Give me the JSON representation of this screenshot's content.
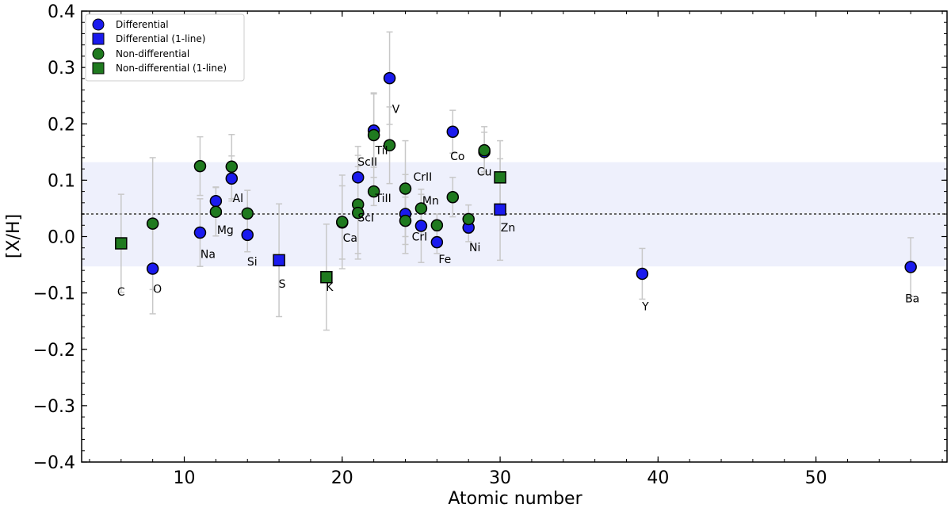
{
  "chart_data": {
    "type": "scatter",
    "xlabel": "Atomic number",
    "ylabel": "[X/H]",
    "xlim": [
      3.5,
      58.3
    ],
    "ylim": [
      -0.4,
      0.4
    ],
    "x_ticks": [
      10,
      20,
      30,
      40,
      50
    ],
    "x_tick_labels": [
      "10",
      "20",
      "30",
      "40",
      "50"
    ],
    "y_ticks": [
      -0.4,
      -0.3,
      -0.2,
      -0.1,
      0.0,
      0.1,
      0.2,
      0.3,
      0.4
    ],
    "y_tick_labels": [
      "−0.4",
      "−0.3",
      "−0.2",
      "−0.1",
      "0.0",
      "0.1",
      "0.2",
      "0.3",
      "0.4"
    ],
    "grid": false,
    "legend_position": "top-left",
    "mean_line": 0.04,
    "band": [
      -0.053,
      0.132
    ],
    "colors": {
      "differential": "#1a1aee",
      "non_differential": "#1f7a1f",
      "band": "#eef0fc",
      "errorbar": "#c8c8c8",
      "mean_line": "#666666"
    },
    "series": [
      {
        "name": "Differential",
        "marker": "circle",
        "points": [
          {
            "x": 8,
            "y": -0.057,
            "err": 0.08
          },
          {
            "x": 11,
            "y": 0.007,
            "err": 0.06
          },
          {
            "x": 12,
            "y": 0.063,
            "err": 0.025
          },
          {
            "x": 13,
            "y": 0.103,
            "err": 0.04
          },
          {
            "x": 14,
            "y": 0.003,
            "err": 0.03
          },
          {
            "x": 20,
            "y": 0.025,
            "err": 0.065
          },
          {
            "x": 21,
            "y": 0.105,
            "err": 0.055
          },
          {
            "x": 22,
            "y": 0.188,
            "err": 0.065
          },
          {
            "x": 23,
            "y": 0.281,
            "err": 0.082
          },
          {
            "x": 24,
            "y": 0.04,
            "err": 0.07
          },
          {
            "x": 25,
            "y": 0.019,
            "err": 0.065
          },
          {
            "x": 26,
            "y": -0.01,
            "err": 0.02
          },
          {
            "x": 27,
            "y": 0.186,
            "err": 0.038
          },
          {
            "x": 28,
            "y": 0.016,
            "err": 0.025
          },
          {
            "x": 29,
            "y": 0.15,
            "err": 0.035
          },
          {
            "x": 39,
            "y": -0.066,
            "err": 0.045
          },
          {
            "x": 56,
            "y": -0.054,
            "err": 0.052
          }
        ]
      },
      {
        "name": "Differential (1-line)",
        "marker": "square",
        "points": [
          {
            "x": 16,
            "y": -0.042,
            "err": 0.1
          },
          {
            "x": 30,
            "y": 0.048,
            "err": 0.09
          }
        ]
      },
      {
        "name": "Non-differential",
        "marker": "circle",
        "points": [
          {
            "x": 8,
            "y": 0.023,
            "err": 0.117
          },
          {
            "x": 11,
            "y": 0.125,
            "err": 0.052
          },
          {
            "x": 12,
            "y": 0.044,
            "err": 0.043
          },
          {
            "x": 13,
            "y": 0.124,
            "err": 0.057
          },
          {
            "x": 14,
            "y": 0.041,
            "err": 0.041
          },
          {
            "x": 20,
            "y": 0.026,
            "err": 0.083
          },
          {
            "x": 21,
            "y": 0.057,
            "err": 0.087
          },
          {
            "x": 21,
            "y": 0.042,
            "err": 0.082
          },
          {
            "x": 22,
            "y": 0.18,
            "err": 0.075
          },
          {
            "x": 22,
            "y": 0.08,
            "err": 0.025
          },
          {
            "x": 23,
            "y": 0.162,
            "err": 0.068
          },
          {
            "x": 24,
            "y": 0.085,
            "err": 0.085
          },
          {
            "x": 24,
            "y": 0.028,
            "err": 0.042
          },
          {
            "x": 25,
            "y": 0.05,
            "err": 0.025
          },
          {
            "x": 26,
            "y": 0.02,
            "err": 0.02
          },
          {
            "x": 27,
            "y": 0.07,
            "err": 0.035
          },
          {
            "x": 28,
            "y": 0.031,
            "err": 0.025
          },
          {
            "x": 29,
            "y": 0.153,
            "err": 0.042
          }
        ]
      },
      {
        "name": "Non-differential (1-line)",
        "marker": "square",
        "points": [
          {
            "x": 6,
            "y": -0.012,
            "err": 0.087
          },
          {
            "x": 19,
            "y": -0.072,
            "err": 0.094
          },
          {
            "x": 30,
            "y": 0.105,
            "err": 0.065
          }
        ]
      }
    ],
    "annotations": [
      {
        "text": "C",
        "x": 6,
        "y": -0.105
      },
      {
        "text": "O",
        "x": 8.3,
        "y": -0.1
      },
      {
        "text": "Na",
        "x": 11.5,
        "y": -0.038
      },
      {
        "text": "Mg",
        "x": 12.6,
        "y": 0.005
      },
      {
        "text": "Al",
        "x": 13.4,
        "y": 0.061
      },
      {
        "text": "Si",
        "x": 14.3,
        "y": -0.051
      },
      {
        "text": "S",
        "x": 16.2,
        "y": -0.091
      },
      {
        "text": "K",
        "x": 19.2,
        "y": -0.096
      },
      {
        "text": "Ca",
        "x": 20.5,
        "y": -0.009
      },
      {
        "text": "ScI",
        "x": 21.5,
        "y": 0.027
      },
      {
        "text": "ScII",
        "x": 21.6,
        "y": 0.126
      },
      {
        "text": "TiI",
        "x": 22.5,
        "y": 0.146
      },
      {
        "text": "TiII",
        "x": 22.6,
        "y": 0.061
      },
      {
        "text": "V",
        "x": 23.4,
        "y": 0.219
      },
      {
        "text": "CrII",
        "x": 25.1,
        "y": 0.099
      },
      {
        "text": "Mn",
        "x": 25.6,
        "y": 0.057
      },
      {
        "text": "CrI",
        "x": 24.9,
        "y": -0.007
      },
      {
        "text": "Fe",
        "x": 26.5,
        "y": -0.047
      },
      {
        "text": "Co",
        "x": 27.3,
        "y": 0.136
      },
      {
        "text": "Cu",
        "x": 29,
        "y": 0.108
      },
      {
        "text": "Ni",
        "x": 28.4,
        "y": -0.026
      },
      {
        "text": "Zn",
        "x": 30.5,
        "y": 0.009
      },
      {
        "text": "Y",
        "x": 39.2,
        "y": -0.131
      },
      {
        "text": "Ba",
        "x": 56.1,
        "y": -0.117
      }
    ]
  }
}
